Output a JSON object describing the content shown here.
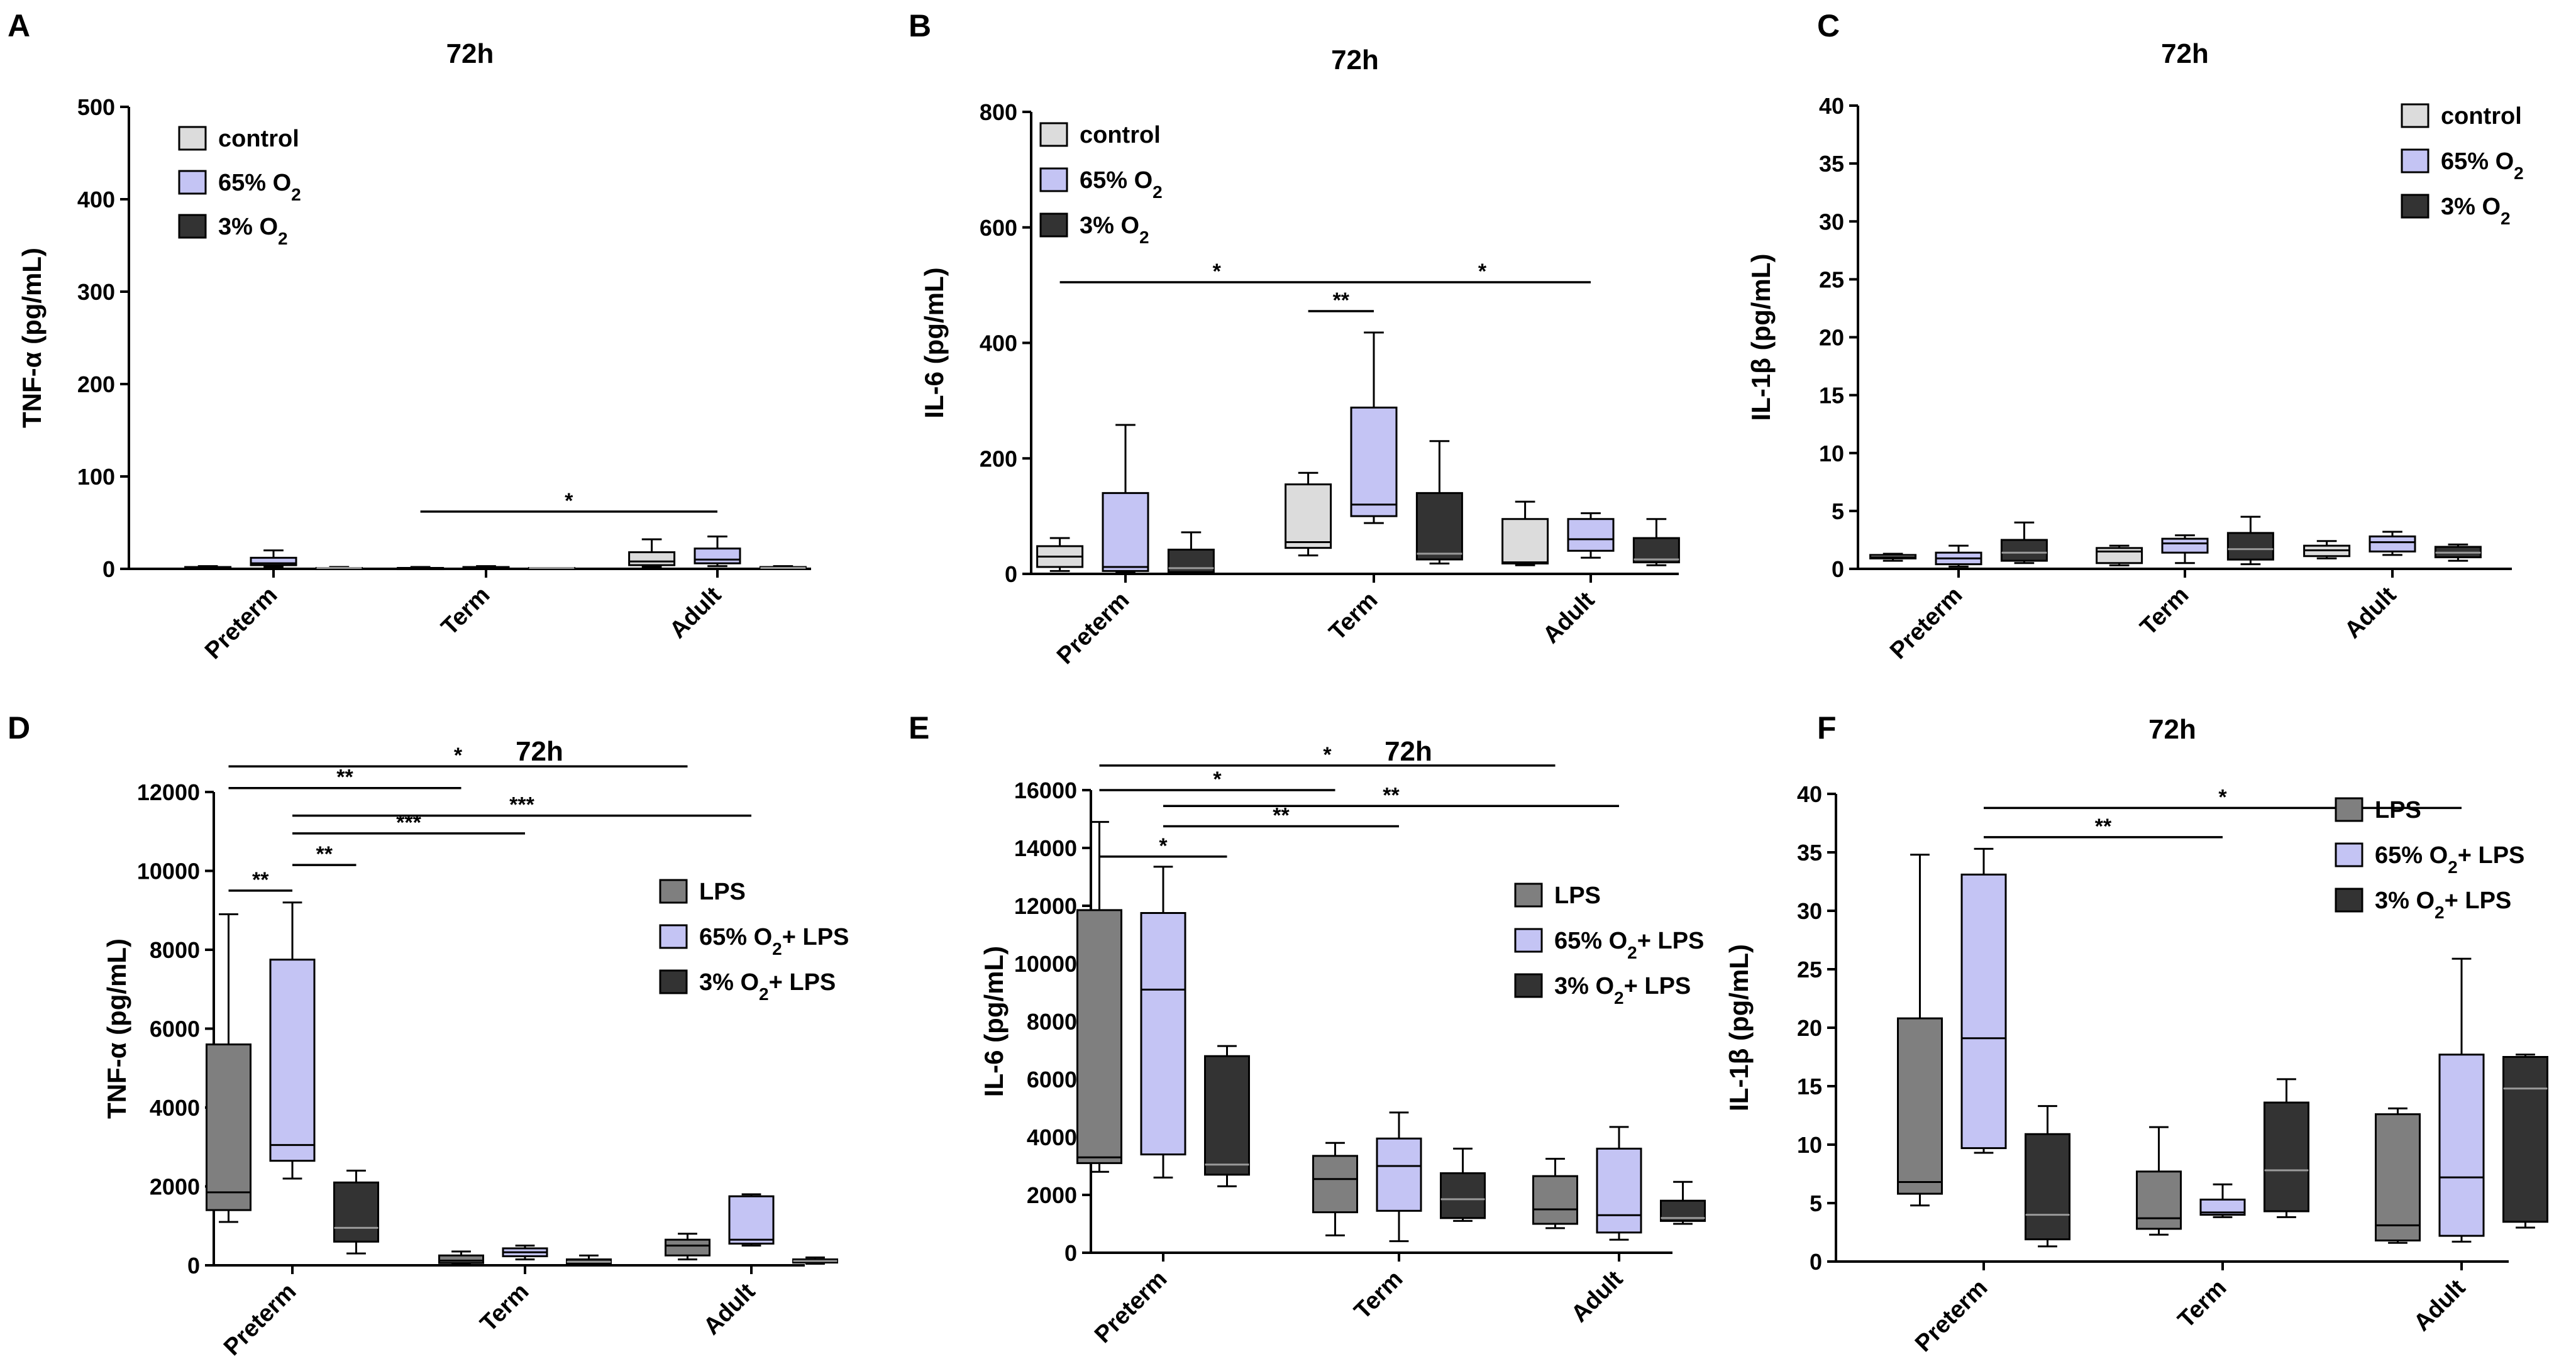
{
  "colors": {
    "control": "#dcdcdc",
    "o2_65": "#c4c4f4",
    "o2_3": "#333333",
    "lps": "#7f7f7f",
    "stroke": "#000000"
  },
  "x_categories": [
    "Preterm",
    "Term",
    "Adult"
  ],
  "chart_data": [
    {
      "panel": "A",
      "type": "boxplot",
      "title": "72h",
      "ylabel": "TNF-α (pg/mL)",
      "ylim": [
        0,
        500
      ],
      "yticks": [
        0,
        100,
        200,
        300,
        400,
        500
      ],
      "categories": [
        "Preterm",
        "Term",
        "Adult"
      ],
      "legend": [
        {
          "label": "control",
          "sub": "",
          "color_key": "control"
        },
        {
          "label": "65% O",
          "sub": "2",
          "color_key": "o2_65"
        },
        {
          "label": "3% O",
          "sub": "2",
          "color_key": "o2_3"
        }
      ],
      "series": [
        {
          "name": "control",
          "color_key": "control",
          "boxes": [
            [
              0,
              0,
              1,
              2,
              3
            ],
            [
              0,
              0,
              1,
              1,
              2
            ],
            [
              2,
              4,
              8,
              18,
              32
            ]
          ]
        },
        {
          "name": "65% O2",
          "color_key": "o2_65",
          "boxes": [
            [
              2,
              4,
              6,
              12,
              20
            ],
            [
              0,
              0,
              1,
              2,
              3
            ],
            [
              3,
              6,
              10,
              22,
              35
            ]
          ]
        },
        {
          "name": "3% O2",
          "color_key": "o2_3",
          "boxes": [
            [
              0,
              0,
              1,
              1,
              2
            ],
            [
              0,
              0,
              1,
              1,
              1
            ],
            [
              0,
              1,
              1,
              2,
              3
            ]
          ]
        }
      ],
      "annotations": [
        {
          "label": "*",
          "from": [
            1,
            0
          ],
          "to": [
            2,
            1
          ],
          "y": 62
        }
      ]
    },
    {
      "panel": "B",
      "type": "boxplot",
      "title": "72h",
      "ylabel": "IL-6 (pg/mL)",
      "ylim": [
        0,
        800
      ],
      "yticks": [
        0,
        200,
        400,
        600,
        800
      ],
      "categories": [
        "Preterm",
        "Term",
        "Adult"
      ],
      "legend": [
        {
          "label": "control",
          "sub": "",
          "color_key": "control"
        },
        {
          "label": "65% O",
          "sub": "2",
          "color_key": "o2_65"
        },
        {
          "label": "3% O",
          "sub": "2",
          "color_key": "o2_3"
        }
      ],
      "series": [
        {
          "name": "control",
          "color_key": "control",
          "boxes": [
            [
              5,
              12,
              30,
              48,
              62
            ],
            [
              32,
              45,
              55,
              155,
              175
            ],
            [
              15,
              18,
              20,
              95,
              125
            ]
          ]
        },
        {
          "name": "65% O2",
          "color_key": "o2_65",
          "boxes": [
            [
              2,
              5,
              12,
              140,
              258
            ],
            [
              88,
              100,
              120,
              288,
              418
            ],
            [
              28,
              40,
              60,
              95,
              105
            ]
          ]
        },
        {
          "name": "3% O2",
          "color_key": "o2_3",
          "boxes": [
            [
              0,
              3,
              10,
              42,
              72
            ],
            [
              18,
              25,
              35,
              140,
              230
            ],
            [
              15,
              20,
              25,
              62,
              95
            ]
          ]
        }
      ],
      "annotations": [
        {
          "label": "*",
          "from": [
            0,
            0
          ],
          "to": [
            1,
            1
          ],
          "y": 505
        },
        {
          "label": "*",
          "from": [
            1,
            1
          ],
          "to": [
            2,
            1
          ],
          "y": 505
        },
        {
          "label": "**",
          "from": [
            1,
            0
          ],
          "to": [
            1,
            1
          ],
          "y": 455
        }
      ]
    },
    {
      "panel": "C",
      "type": "boxplot",
      "title": "72h",
      "ylabel": "IL-1β (pg/mL)",
      "ylim": [
        0,
        40
      ],
      "yticks": [
        0,
        5,
        10,
        15,
        20,
        25,
        30,
        35,
        40
      ],
      "categories": [
        "Preterm",
        "Term",
        "Adult"
      ],
      "legend": [
        {
          "label": "control",
          "sub": "",
          "color_key": "control"
        },
        {
          "label": "65% O",
          "sub": "2",
          "color_key": "o2_65"
        },
        {
          "label": "3% O",
          "sub": "2",
          "color_key": "o2_3"
        }
      ],
      "series": [
        {
          "name": "control",
          "color_key": "control",
          "boxes": [
            [
              0.7,
              0.9,
              1.0,
              1.2,
              1.3
            ],
            [
              0.3,
              0.5,
              1.5,
              1.8,
              2.0
            ],
            [
              0.9,
              1.1,
              1.6,
              2.0,
              2.4
            ]
          ]
        },
        {
          "name": "65% O2",
          "color_key": "o2_65",
          "boxes": [
            [
              0.2,
              0.4,
              0.9,
              1.4,
              2.0
            ],
            [
              0.5,
              1.4,
              2.2,
              2.6,
              2.9
            ],
            [
              1.2,
              1.5,
              2.3,
              2.8,
              3.2
            ]
          ]
        },
        {
          "name": "3% O2",
          "color_key": "o2_3",
          "boxes": [
            [
              0.5,
              0.7,
              1.4,
              2.5,
              4.0
            ],
            [
              0.4,
              0.8,
              1.7,
              3.1,
              4.5
            ],
            [
              0.7,
              1.0,
              1.4,
              1.9,
              2.1
            ]
          ]
        }
      ],
      "annotations": []
    },
    {
      "panel": "D",
      "type": "boxplot",
      "title": "72h",
      "ylabel": "TNF-α (pg/mL)",
      "ylim": [
        0,
        12000
      ],
      "yticks": [
        0,
        2000,
        4000,
        6000,
        8000,
        10000,
        12000
      ],
      "categories": [
        "Preterm",
        "Term",
        "Adult"
      ],
      "legend": [
        {
          "label": "LPS",
          "sub": "",
          "label2": "",
          "color_key": "lps"
        },
        {
          "label": "65% O",
          "sub": "2",
          "label2": "+ LPS",
          "color_key": "o2_65"
        },
        {
          "label": "3% O",
          "sub": "2",
          "label2": "+ LPS",
          "color_key": "o2_3"
        }
      ],
      "series": [
        {
          "name": "LPS",
          "color_key": "lps",
          "boxes": [
            [
              1100,
              1400,
              1850,
              5600,
              8900
            ],
            [
              30,
              60,
              120,
              250,
              350
            ],
            [
              150,
              250,
              500,
              650,
              800
            ]
          ]
        },
        {
          "name": "65% O2+ LPS",
          "color_key": "o2_65",
          "boxes": [
            [
              2200,
              2650,
              3050,
              7750,
              9200
            ],
            [
              150,
              230,
              330,
              430,
              500
            ],
            [
              500,
              550,
              650,
              1750,
              1800
            ]
          ]
        },
        {
          "name": "3% O2+ LPS",
          "color_key": "o2_3",
          "boxes": [
            [
              300,
              600,
              950,
              2100,
              2400
            ],
            [
              20,
              40,
              90,
              150,
              250
            ],
            [
              40,
              70,
              110,
              150,
              200
            ]
          ]
        }
      ],
      "annotations": [
        {
          "label": "*",
          "from": [
            0,
            0
          ],
          "to": [
            2,
            0
          ],
          "y": 12650
        },
        {
          "label": "**",
          "from": [
            0,
            0
          ],
          "to": [
            1,
            0
          ],
          "y": 12100
        },
        {
          "label": "***",
          "from": [
            0,
            1
          ],
          "to": [
            2,
            1
          ],
          "y": 11400
        },
        {
          "label": "***",
          "from": [
            0,
            1
          ],
          "to": [
            1,
            1
          ],
          "y": 10950
        },
        {
          "label": "**",
          "from": [
            0,
            1
          ],
          "to": [
            0,
            2
          ],
          "y": 10150
        },
        {
          "label": "**",
          "from": [
            0,
            0
          ],
          "to": [
            0,
            1
          ],
          "y": 9500
        }
      ]
    },
    {
      "panel": "E",
      "type": "boxplot",
      "title": "72h",
      "ylabel": "IL-6 (pg/mL)",
      "ylim": [
        0,
        16000
      ],
      "yticks": [
        0,
        2000,
        4000,
        6000,
        8000,
        10000,
        12000,
        14000,
        16000
      ],
      "categories": [
        "Preterm",
        "Term",
        "Adult"
      ],
      "legend": [
        {
          "label": "LPS",
          "sub": "",
          "label2": "",
          "color_key": "lps"
        },
        {
          "label": "65% O",
          "sub": "2",
          "label2": "+ LPS",
          "color_key": "o2_65"
        },
        {
          "label": "3% O",
          "sub": "2",
          "label2": "+ LPS",
          "color_key": "o2_3"
        }
      ],
      "series": [
        {
          "name": "LPS",
          "color_key": "lps",
          "boxes": [
            [
              2800,
              3100,
              3300,
              11850,
              14900
            ],
            [
              600,
              1400,
              2550,
              3350,
              3800
            ],
            [
              850,
              1000,
              1500,
              2650,
              3250
            ]
          ]
        },
        {
          "name": "65% O2+ LPS",
          "color_key": "o2_65",
          "boxes": [
            [
              2600,
              3400,
              9100,
              11750,
              13350
            ],
            [
              400,
              1450,
              3000,
              3950,
              4850
            ],
            [
              450,
              700,
              1300,
              3600,
              4350
            ]
          ]
        },
        {
          "name": "3% O2+ LPS",
          "color_key": "o2_3",
          "boxes": [
            [
              2300,
              2700,
              3050,
              6800,
              7150
            ],
            [
              1100,
              1200,
              1850,
              2750,
              3600
            ],
            [
              1000,
              1100,
              1200,
              1800,
              2450
            ]
          ]
        }
      ],
      "annotations": [
        {
          "label": "*",
          "from": [
            0,
            0
          ],
          "to": [
            2,
            0
          ],
          "y": 16850
        },
        {
          "label": "*",
          "from": [
            0,
            0
          ],
          "to": [
            1,
            0
          ],
          "y": 16000
        },
        {
          "label": "**",
          "from": [
            0,
            1
          ],
          "to": [
            2,
            1
          ],
          "y": 15450
        },
        {
          "label": "**",
          "from": [
            0,
            1
          ],
          "to": [
            1,
            1
          ],
          "y": 14750
        },
        {
          "label": "*",
          "from": [
            0,
            0
          ],
          "to": [
            0,
            2
          ],
          "y": 13700
        }
      ]
    },
    {
      "panel": "F",
      "type": "boxplot",
      "title": "72h",
      "ylabel": "IL-1β (pg/mL)",
      "ylim": [
        0,
        40
      ],
      "yticks": [
        0,
        5,
        10,
        15,
        20,
        25,
        30,
        35,
        40
      ],
      "categories": [
        "Preterm",
        "Term",
        "Adult"
      ],
      "legend": [
        {
          "label": "LPS",
          "sub": "",
          "label2": "",
          "color_key": "lps"
        },
        {
          "label": "65% O",
          "sub": "2",
          "label2": "+ LPS",
          "color_key": "o2_65"
        },
        {
          "label": "3% O",
          "sub": "2",
          "label2": "+ LPS",
          "color_key": "o2_3"
        }
      ],
      "series": [
        {
          "name": "LPS",
          "color_key": "lps",
          "boxes": [
            [
              4.8,
              5.8,
              6.8,
              20.8,
              34.8
            ],
            [
              2.3,
              2.8,
              3.7,
              7.7,
              11.5
            ],
            [
              1.6,
              1.8,
              3.1,
              12.6,
              13.1
            ]
          ]
        },
        {
          "name": "65% O2+ LPS",
          "color_key": "o2_65",
          "boxes": [
            [
              9.3,
              9.7,
              19.1,
              33.1,
              35.3
            ],
            [
              3.8,
              4.0,
              4.2,
              5.3,
              6.6
            ],
            [
              1.7,
              2.2,
              7.2,
              17.7,
              25.9
            ]
          ]
        },
        {
          "name": "3% O2+ LPS",
          "color_key": "o2_3",
          "boxes": [
            [
              1.3,
              1.9,
              4.0,
              10.9,
              13.3
            ],
            [
              3.8,
              4.3,
              7.8,
              13.6,
              15.6
            ],
            [
              2.9,
              3.4,
              14.8,
              17.5,
              17.7
            ]
          ]
        }
      ],
      "annotations": [
        {
          "label": "*",
          "from": [
            0,
            1
          ],
          "to": [
            2,
            1
          ],
          "y": 38.8
        },
        {
          "label": "**",
          "from": [
            0,
            1
          ],
          "to": [
            1,
            1
          ],
          "y": 36.3
        }
      ]
    }
  ]
}
